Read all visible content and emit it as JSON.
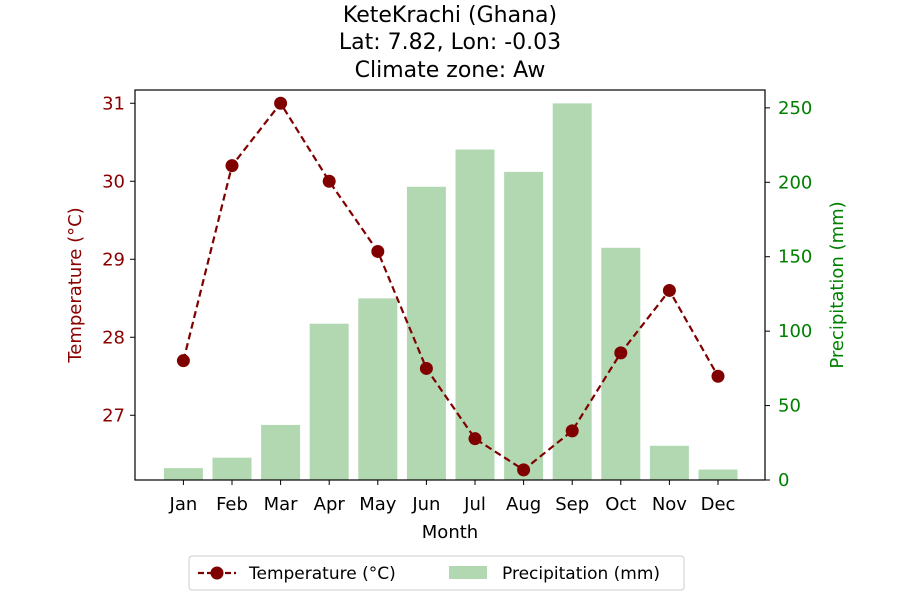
{
  "chart_data": {
    "type": "bar+line",
    "title_lines": [
      "KeteKrachi (Ghana)",
      "Lat: 7.82, Lon: -0.03",
      "Climate zone: Aw"
    ],
    "xlabel": "Month",
    "categories": [
      "Jan",
      "Feb",
      "Mar",
      "Apr",
      "May",
      "Jun",
      "Jul",
      "Aug",
      "Sep",
      "Oct",
      "Nov",
      "Dec"
    ],
    "series": [
      {
        "name": "Temperature (°C)",
        "type": "line",
        "axis": "left",
        "color": "#800000",
        "values": [
          27.7,
          30.2,
          31.0,
          30.0,
          29.1,
          27.6,
          26.7,
          26.3,
          26.8,
          27.8,
          28.6,
          27.5
        ]
      },
      {
        "name": "Precipitation (mm)",
        "type": "bar",
        "axis": "right",
        "color": "#b2d8b2",
        "values": [
          8,
          15,
          37,
          105,
          122,
          197,
          222,
          207,
          253,
          156,
          23,
          7
        ]
      }
    ],
    "left_axis": {
      "label": "Temperature (°C)",
      "ticks": [
        "27",
        "28",
        "29",
        "30",
        "31"
      ],
      "ylim": [
        26.17,
        31.17
      ],
      "color": "#8b0000"
    },
    "right_axis": {
      "label": "Precipitation (mm)",
      "ticks": [
        "0",
        "50",
        "100",
        "150",
        "200",
        "250"
      ],
      "ylim": [
        0,
        262
      ],
      "color": "#008000"
    },
    "legend": {
      "position": "bottom-center",
      "items": [
        {
          "label": "Temperature (°C)"
        },
        {
          "label": "Precipitation (mm)"
        }
      ]
    }
  }
}
